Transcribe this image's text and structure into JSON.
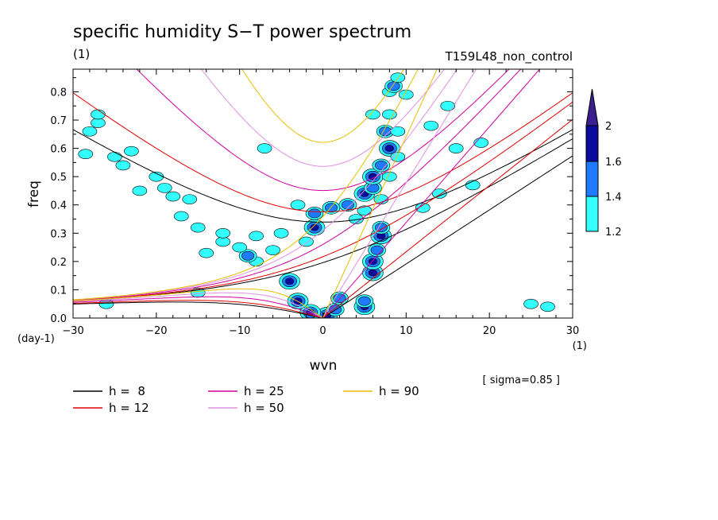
{
  "chart_data": {
    "type": "heatmap",
    "title": "specific humidity S−T power spectrum",
    "subtitle_left": "(1)",
    "subtitle_right": "T159L48_non_control",
    "xlabel": "wvn",
    "ylabel": "freq",
    "x_unit": "(1)",
    "y_unit": "(day-1)",
    "note": "[ sigma=0.85 ]",
    "xlim": [
      -30,
      30
    ],
    "ylim": [
      0,
      0.88
    ],
    "x_ticks": [
      -30,
      -20,
      -10,
      0,
      10,
      20,
      30
    ],
    "x_tick_labels": [
      "−30",
      "−20",
      "−10",
      "0",
      "10",
      "20",
      "30"
    ],
    "y_ticks": [
      0,
      0.1,
      0.2,
      0.3,
      0.4,
      0.5,
      0.6,
      0.7,
      0.8
    ],
    "y_tick_labels": [
      "0.0",
      "0.1",
      "0.2",
      "0.3",
      "0.4",
      "0.5",
      "0.6",
      "0.7",
      "0.8"
    ],
    "colorbar": {
      "levels": [
        1.2,
        1.4,
        1.6,
        2
      ],
      "labels": [
        "1.2",
        "1.4",
        "1.6",
        "2"
      ],
      "colors": [
        "#33ffff",
        "#1e7bff",
        "#0b0b9e",
        "#3a1f8f"
      ]
    },
    "legend": [
      {
        "label": "h =  8",
        "h": 8,
        "color": "#000000"
      },
      {
        "label": "h = 12",
        "h": 12,
        "color": "#e00000"
      },
      {
        "label": "h = 25",
        "h": 25,
        "color": "#d000a0"
      },
      {
        "label": "h = 50",
        "h": 50,
        "color": "#e090e0"
      },
      {
        "label": "h = 90",
        "h": 90,
        "color": "#e8c000"
      }
    ],
    "blobs": [
      {
        "x": 0.5,
        "y": 0.01,
        "level": 3
      },
      {
        "x": -1.5,
        "y": 0.02,
        "level": 3
      },
      {
        "x": 1.5,
        "y": 0.03,
        "level": 2
      },
      {
        "x": -3,
        "y": 0.06,
        "level": 3
      },
      {
        "x": 2,
        "y": 0.07,
        "level": 2
      },
      {
        "x": 5,
        "y": 0.04,
        "level": 3
      },
      {
        "x": 5,
        "y": 0.06,
        "level": 2
      },
      {
        "x": -4,
        "y": 0.13,
        "level": 3
      },
      {
        "x": 6,
        "y": 0.16,
        "level": 3
      },
      {
        "x": 6,
        "y": 0.2,
        "level": 3
      },
      {
        "x": 6.5,
        "y": 0.24,
        "level": 2
      },
      {
        "x": 7,
        "y": 0.29,
        "level": 3
      },
      {
        "x": 7,
        "y": 0.32,
        "level": 2
      },
      {
        "x": -1,
        "y": 0.32,
        "level": 3
      },
      {
        "x": -1,
        "y": 0.37,
        "level": 2
      },
      {
        "x": 1,
        "y": 0.39,
        "level": 2
      },
      {
        "x": 3,
        "y": 0.4,
        "level": 2
      },
      {
        "x": 5,
        "y": 0.44,
        "level": 3
      },
      {
        "x": 6,
        "y": 0.46,
        "level": 2
      },
      {
        "x": 6,
        "y": 0.5,
        "level": 3
      },
      {
        "x": 7,
        "y": 0.54,
        "level": 2
      },
      {
        "x": 8,
        "y": 0.6,
        "level": 3
      },
      {
        "x": 7.5,
        "y": 0.66,
        "level": 2
      },
      {
        "x": 8,
        "y": 0.72,
        "level": 1
      },
      {
        "x": 8,
        "y": 0.8,
        "level": 1
      },
      {
        "x": 8.5,
        "y": 0.82,
        "level": 2
      },
      {
        "x": 4,
        "y": 0.35,
        "level": 1
      },
      {
        "x": 5,
        "y": 0.38,
        "level": 1
      },
      {
        "x": 7,
        "y": 0.42,
        "level": 1
      },
      {
        "x": 8,
        "y": 0.5,
        "level": 1
      },
      {
        "x": 9,
        "y": 0.57,
        "level": 1
      },
      {
        "x": 9,
        "y": 0.66,
        "level": 1
      },
      {
        "x": 10,
        "y": 0.79,
        "level": 1
      },
      {
        "x": 9,
        "y": 0.85,
        "level": 1
      },
      {
        "x": -6,
        "y": 0.24,
        "level": 1
      },
      {
        "x": -8,
        "y": 0.2,
        "level": 1
      },
      {
        "x": -9,
        "y": 0.22,
        "level": 2
      },
      {
        "x": -10,
        "y": 0.25,
        "level": 1
      },
      {
        "x": -12,
        "y": 0.27,
        "level": 1
      },
      {
        "x": -14,
        "y": 0.23,
        "level": 1
      },
      {
        "x": -12,
        "y": 0.3,
        "level": 1
      },
      {
        "x": -15,
        "y": 0.32,
        "level": 1
      },
      {
        "x": -17,
        "y": 0.36,
        "level": 1
      },
      {
        "x": -18,
        "y": 0.43,
        "level": 1
      },
      {
        "x": -19,
        "y": 0.46,
        "level": 1
      },
      {
        "x": -16,
        "y": 0.42,
        "level": 1
      },
      {
        "x": -22,
        "y": 0.45,
        "level": 1
      },
      {
        "x": -24,
        "y": 0.54,
        "level": 1
      },
      {
        "x": -25,
        "y": 0.57,
        "level": 1
      },
      {
        "x": -28,
        "y": 0.66,
        "level": 1
      },
      {
        "x": -27,
        "y": 0.69,
        "level": 1
      },
      {
        "x": -20,
        "y": 0.5,
        "level": 1
      },
      {
        "x": -8,
        "y": 0.29,
        "level": 1
      },
      {
        "x": -5,
        "y": 0.3,
        "level": 1
      },
      {
        "x": -3,
        "y": 0.4,
        "level": 1
      },
      {
        "x": 6,
        "y": 0.72,
        "level": 1
      },
      {
        "x": 15,
        "y": 0.75,
        "level": 1
      },
      {
        "x": 16,
        "y": 0.6,
        "level": 1
      },
      {
        "x": 18,
        "y": 0.47,
        "level": 1
      },
      {
        "x": 27,
        "y": 0.04,
        "level": 1
      },
      {
        "x": 25,
        "y": 0.05,
        "level": 1
      },
      {
        "x": -27,
        "y": 0.72,
        "level": 1
      },
      {
        "x": -23,
        "y": 0.59,
        "level": 1
      },
      {
        "x": -28.5,
        "y": 0.58,
        "level": 1
      },
      {
        "x": -7,
        "y": 0.6,
        "level": 1
      },
      {
        "x": -2,
        "y": 0.27,
        "level": 1
      },
      {
        "x": 12,
        "y": 0.39,
        "level": 1
      },
      {
        "x": 14,
        "y": 0.44,
        "level": 1
      },
      {
        "x": 13,
        "y": 0.68,
        "level": 1
      },
      {
        "x": 19,
        "y": 0.62,
        "level": 1
      },
      {
        "x": -26,
        "y": 0.05,
        "level": 1
      },
      {
        "x": -15,
        "y": 0.09,
        "level": 1
      }
    ]
  }
}
